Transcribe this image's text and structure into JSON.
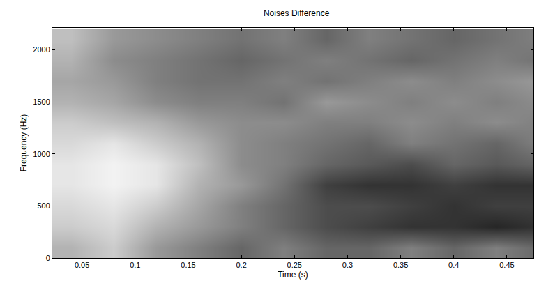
{
  "chart_data": {
    "type": "heatmap",
    "title": "Noises Difference",
    "x_label": "Time (s)",
    "y_label": "Frequency (Hz)",
    "x": [
      0.04,
      0.08,
      0.12,
      0.16,
      0.2,
      0.24,
      0.28,
      0.32,
      0.36,
      0.4,
      0.44,
      0.48
    ],
    "y": [
      100,
      300,
      500,
      700,
      900,
      1100,
      1300,
      1500,
      1700,
      1900,
      2100
    ],
    "cells": [
      [
        0.3,
        0.2,
        0.4,
        0.5,
        0.6,
        0.5,
        0.6,
        0.6,
        0.5,
        0.6,
        0.5,
        0.6
      ],
      [
        0.2,
        0.15,
        0.3,
        0.4,
        0.5,
        0.6,
        0.7,
        0.75,
        0.8,
        0.8,
        0.85,
        0.8
      ],
      [
        0.15,
        0.1,
        0.2,
        0.35,
        0.5,
        0.6,
        0.7,
        0.7,
        0.75,
        0.8,
        0.75,
        0.75
      ],
      [
        0.1,
        0.05,
        0.1,
        0.3,
        0.4,
        0.55,
        0.75,
        0.8,
        0.8,
        0.75,
        0.8,
        0.8
      ],
      [
        0.1,
        0.05,
        0.1,
        0.25,
        0.45,
        0.5,
        0.6,
        0.65,
        0.7,
        0.6,
        0.65,
        0.6
      ],
      [
        0.15,
        0.1,
        0.2,
        0.3,
        0.45,
        0.5,
        0.55,
        0.6,
        0.5,
        0.55,
        0.6,
        0.5
      ],
      [
        0.2,
        0.25,
        0.3,
        0.4,
        0.45,
        0.45,
        0.5,
        0.5,
        0.45,
        0.5,
        0.45,
        0.5
      ],
      [
        0.3,
        0.35,
        0.45,
        0.5,
        0.5,
        0.55,
        0.4,
        0.45,
        0.5,
        0.45,
        0.5,
        0.45
      ],
      [
        0.35,
        0.4,
        0.5,
        0.55,
        0.55,
        0.5,
        0.55,
        0.5,
        0.45,
        0.5,
        0.45,
        0.4
      ],
      [
        0.3,
        0.45,
        0.5,
        0.55,
        0.6,
        0.55,
        0.5,
        0.55,
        0.6,
        0.55,
        0.5,
        0.55
      ],
      [
        0.25,
        0.4,
        0.45,
        0.5,
        0.55,
        0.5,
        0.6,
        0.5,
        0.55,
        0.6,
        0.55,
        0.5
      ]
    ],
    "zlim": [
      0,
      1
    ],
    "xlim": [
      0.022,
      0.475
    ],
    "xticks": [
      0.05,
      0.1,
      0.15,
      0.2,
      0.25,
      0.3,
      0.35,
      0.4,
      0.45
    ],
    "ylim": [
      0,
      2210
    ],
    "yticks": [
      0,
      500,
      1000,
      1500,
      2000
    ],
    "grid": false
  }
}
